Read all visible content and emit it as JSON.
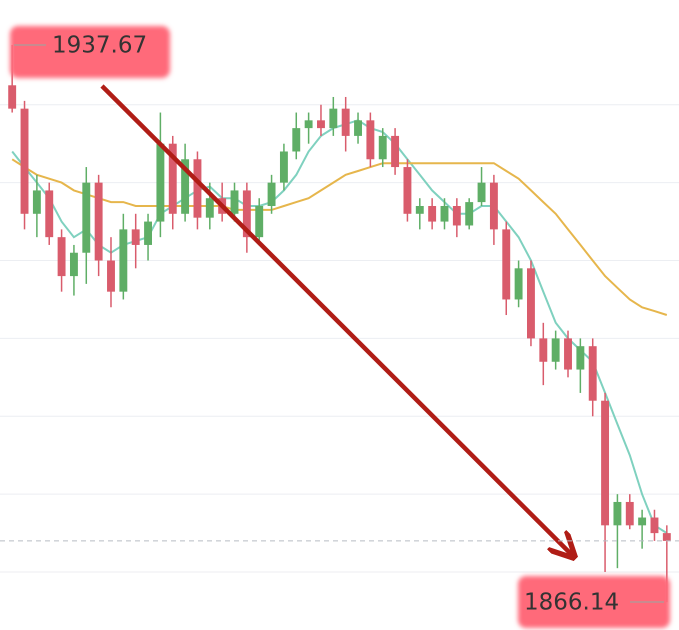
{
  "chart_data": {
    "type": "candlestick",
    "open": [
      1932.5,
      1929.5,
      1916,
      1919,
      1913,
      1908,
      1911,
      1920,
      1910,
      1906,
      1914,
      1912,
      1915,
      1925,
      1916,
      1923,
      1915.5,
      1918,
      1916,
      1919,
      1913,
      1917,
      1920,
      1924,
      1927,
      1928,
      1927,
      1929.5,
      1926,
      1928,
      1923,
      1926,
      1922,
      1916,
      1917,
      1915,
      1917,
      1914.5,
      1917.5,
      1920,
      1914,
      1905,
      1909,
      1900,
      1897,
      1900,
      1896,
      1899,
      1892,
      1876,
      1879,
      1876,
      1877,
      1875
    ],
    "high": [
      1937.67,
      1930.5,
      1921,
      1920,
      1914,
      1912,
      1922,
      1921,
      1913,
      1916,
      1916,
      1916,
      1929,
      1926,
      1925,
      1924,
      1920,
      1920,
      1920,
      1920,
      1918,
      1921,
      1925,
      1929,
      1929,
      1930,
      1931,
      1931,
      1929,
      1929,
      1927,
      1927,
      1923,
      1918,
      1918,
      1918,
      1918,
      1918,
      1922,
      1921,
      1915,
      1910,
      1910,
      1902,
      1901,
      1901,
      1900,
      1900,
      1893,
      1880,
      1880,
      1878,
      1878,
      1876
    ],
    "low": [
      1929,
      1914,
      1913,
      1912,
      1906,
      1905.5,
      1907,
      1908,
      1904,
      1905,
      1909,
      1910,
      1913,
      1914,
      1915,
      1914,
      1914,
      1915,
      1915,
      1911,
      1912,
      1916,
      1919,
      1923,
      1925,
      1926,
      1926,
      1924,
      1925,
      1922,
      1922,
      1921,
      1915,
      1914,
      1914,
      1914,
      1913,
      1914,
      1917,
      1912,
      1903,
      1904,
      1899,
      1894,
      1896,
      1895,
      1893,
      1890,
      1870,
      1870.5,
      1875.5,
      1873,
      1874,
      1866.14
    ],
    "close": [
      1929.5,
      1916,
      1919,
      1913,
      1908,
      1911,
      1920,
      1910,
      1906,
      1914,
      1912,
      1915,
      1925,
      1916,
      1923,
      1915.5,
      1918,
      1916,
      1919,
      1913,
      1917,
      1920,
      1924,
      1927,
      1928,
      1927,
      1929.5,
      1926,
      1928,
      1923,
      1926,
      1922,
      1916,
      1917,
      1915,
      1917,
      1914.5,
      1917.5,
      1920,
      1914,
      1905,
      1909,
      1900,
      1897,
      1900,
      1896,
      1899,
      1892,
      1876,
      1879,
      1876,
      1877,
      1875,
      1874
    ],
    "up_color": "#5fae66",
    "down_color": "#d95c6c",
    "ma_lines": [
      {
        "color": "#7fd1bf",
        "values": [
          1924,
          1922,
          1920,
          1918,
          1915,
          1913,
          1914,
          1912,
          1911,
          1912,
          1912.5,
          1913,
          1916,
          1917,
          1918,
          1919,
          1919.5,
          1918,
          1918,
          1917,
          1917,
          1917.5,
          1919,
          1921,
          1924,
          1926,
          1927,
          1927.5,
          1928,
          1927,
          1926.5,
          1925,
          1923,
          1921,
          1919,
          1917.5,
          1916,
          1916,
          1917,
          1917,
          1915,
          1913,
          1910,
          1906,
          1902,
          1900,
          1898.5,
          1897,
          1893,
          1889,
          1885,
          1880,
          1876,
          1875
        ]
      },
      {
        "color": "#e6b64c",
        "values": [
          1923,
          1922,
          1921,
          1920.5,
          1920,
          1919,
          1918.5,
          1918,
          1917.5,
          1917.5,
          1917,
          1917,
          1917,
          1917,
          1917,
          1917,
          1917,
          1917,
          1916.5,
          1916.5,
          1916.5,
          1916.5,
          1917,
          1917.5,
          1918,
          1919,
          1920,
          1921,
          1921.5,
          1922,
          1922.5,
          1922.5,
          1922.5,
          1922.5,
          1922.5,
          1922.5,
          1922.5,
          1922.5,
          1922.5,
          1922.5,
          1921.5,
          1920.5,
          1919,
          1917.5,
          1916,
          1914,
          1912,
          1910,
          1908,
          1906.5,
          1905,
          1904,
          1903.5,
          1903
        ]
      }
    ],
    "ylim": [
      1862.56,
      1943.45
    ],
    "yticks": [
      1870,
      1880,
      1890,
      1900,
      1910,
      1920,
      1930
    ],
    "grid": true
  }
}
